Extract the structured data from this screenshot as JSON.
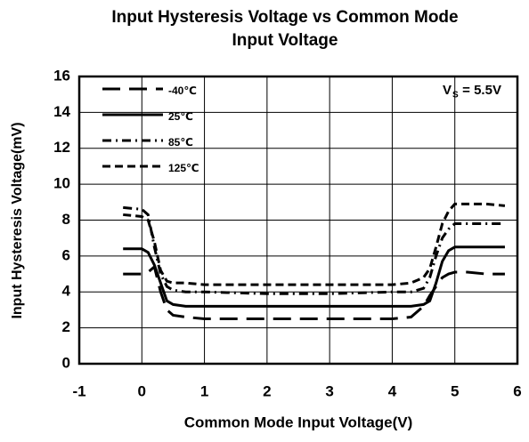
{
  "chart_data": {
    "type": "line",
    "title": [
      "Input Hysteresis Voltage vs Common Mode",
      "Input Voltage"
    ],
    "x_label": "Common Mode Input Voltage(V)",
    "y_label": "Input Hysteresis  Voltage(mV)",
    "annotation": {
      "main": "V",
      "sub": "S",
      "rest": " = 5.5V"
    },
    "x": [
      -0.3,
      0,
      0.1,
      0.2,
      0.3,
      0.4,
      0.5,
      0.7,
      1,
      2,
      3,
      4,
      4.3,
      4.5,
      4.6,
      4.7,
      4.8,
      4.9,
      5,
      5.2,
      5.5,
      5.8
    ],
    "series": [
      {
        "name": "-40℃",
        "color": "#000000",
        "dash": "long",
        "values": [
          5.0,
          5.0,
          5.1,
          5.4,
          4.0,
          3.0,
          2.7,
          2.6,
          2.5,
          2.5,
          2.5,
          2.5,
          2.6,
          3.2,
          3.8,
          4.3,
          4.8,
          5.0,
          5.1,
          5.1,
          5.0,
          5.0
        ]
      },
      {
        "name": "25℃",
        "color": "#000000",
        "dash": "solid",
        "values": [
          6.4,
          6.4,
          6.2,
          5.5,
          4.5,
          3.5,
          3.3,
          3.2,
          3.2,
          3.2,
          3.2,
          3.2,
          3.2,
          3.3,
          3.5,
          4.5,
          5.7,
          6.3,
          6.5,
          6.5,
          6.5,
          6.5
        ]
      },
      {
        "name": "85℃",
        "color": "#000000",
        "dash": "dashdot",
        "values": [
          8.7,
          8.6,
          8.3,
          6.5,
          5.0,
          4.3,
          4.1,
          4.0,
          4.0,
          3.9,
          3.9,
          4.0,
          4.0,
          4.2,
          4.8,
          6.0,
          7.0,
          7.5,
          7.8,
          7.8,
          7.8,
          7.8
        ]
      },
      {
        "name": "125℃",
        "color": "#000000",
        "dash": "short",
        "values": [
          8.3,
          8.2,
          8.0,
          6.8,
          5.2,
          4.6,
          4.5,
          4.5,
          4.4,
          4.4,
          4.4,
          4.4,
          4.5,
          4.8,
          5.3,
          6.5,
          7.8,
          8.5,
          8.9,
          8.9,
          8.9,
          8.8
        ]
      }
    ],
    "xlim": [
      -1,
      6
    ],
    "xticks": [
      -1,
      0,
      1,
      2,
      3,
      4,
      5,
      6
    ],
    "ylim": [
      0,
      16
    ],
    "yticks": [
      0,
      2,
      4,
      6,
      8,
      10,
      12,
      14,
      16
    ],
    "grid": true,
    "legend": "upper left"
  }
}
